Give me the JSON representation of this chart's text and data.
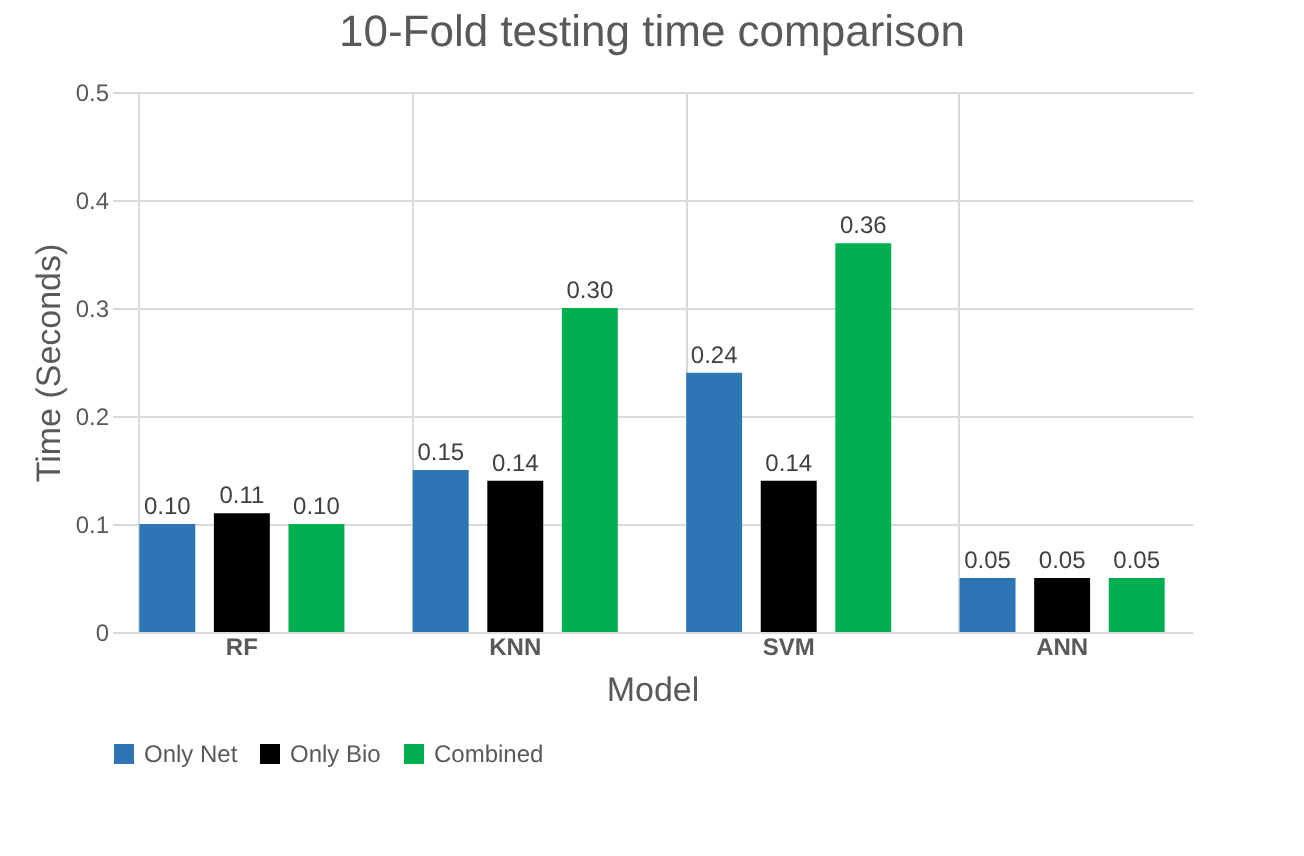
{
  "chart_data": {
    "type": "bar",
    "title": "10-Fold testing time comparison",
    "xlabel": "Model",
    "ylabel": "Time (Seconds)",
    "categories": [
      "RF",
      "KNN",
      "SVM",
      "ANN"
    ],
    "series": [
      {
        "name": "Only Net",
        "color": "#2e75b6",
        "values": [
          0.1,
          0.15,
          0.24,
          0.05
        ],
        "value_labels": [
          "0.10",
          "0.15",
          "0.24",
          "0.05"
        ]
      },
      {
        "name": "Only Bio",
        "color": "#000000",
        "values": [
          0.11,
          0.14,
          0.14,
          0.05
        ],
        "value_labels": [
          "0.11",
          "0.14",
          "0.14",
          "0.05"
        ]
      },
      {
        "name": "Combined",
        "color": "#00b050",
        "values": [
          0.1,
          0.3,
          0.36,
          0.05
        ],
        "value_labels": [
          "0.10",
          "0.30",
          "0.36",
          "0.05"
        ]
      }
    ],
    "ylim": [
      0,
      0.5
    ],
    "yticks": [
      0,
      0.1,
      0.2,
      0.3,
      0.4,
      0.5
    ],
    "grid": "y",
    "legend": "bottom"
  }
}
